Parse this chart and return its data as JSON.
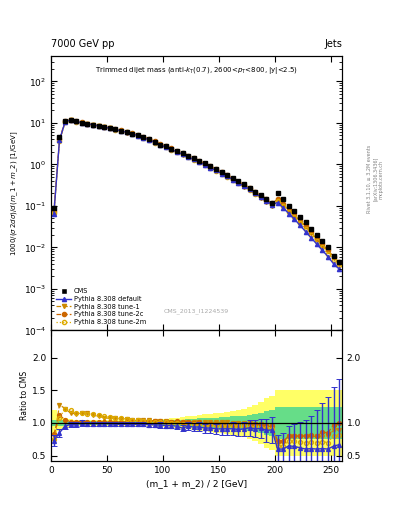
{
  "header_left": "7000 GeV pp",
  "header_right": "Jets",
  "watermark": "CMS_2013_I1224539",
  "rivet_text": "Rivet 3.1.10, ≥ 3.2M events",
  "arxiv_text": "[arXiv:1306.3436]",
  "mcplots_text": "mcplots.cern.ch",
  "xlabel": "(m_1 + m_2) / 2 [GeV]",
  "ylabel_main": "1000/(σ 2dσ)/d(m_1 + m_2) [1/GeV]",
  "ylabel_ratio": "Ratio to CMS",
  "xlim": [
    0,
    260
  ],
  "ylim_main": [
    0.0001,
    400
  ],
  "ylim_ratio": [
    0.42,
    2.42
  ],
  "cms_x": [
    2.5,
    7.5,
    12.5,
    17.5,
    22.5,
    27.5,
    32.5,
    37.5,
    42.5,
    47.5,
    52.5,
    57.5,
    62.5,
    67.5,
    72.5,
    77.5,
    82.5,
    87.5,
    92.5,
    97.5,
    102.5,
    107.5,
    112.5,
    117.5,
    122.5,
    127.5,
    132.5,
    137.5,
    142.5,
    147.5,
    152.5,
    157.5,
    162.5,
    167.5,
    172.5,
    177.5,
    182.5,
    187.5,
    192.5,
    197.5,
    202.5,
    207.5,
    212.5,
    217.5,
    222.5,
    227.5,
    232.5,
    237.5,
    242.5,
    247.5,
    252.5,
    257.5
  ],
  "cms_y": [
    0.09,
    4.5,
    11.0,
    12.0,
    11.0,
    10.0,
    9.5,
    9.0,
    8.5,
    8.0,
    7.5,
    7.0,
    6.5,
    6.0,
    5.5,
    5.0,
    4.5,
    4.0,
    3.5,
    3.0,
    2.7,
    2.4,
    2.1,
    1.9,
    1.6,
    1.4,
    1.2,
    1.05,
    0.9,
    0.78,
    0.66,
    0.56,
    0.47,
    0.4,
    0.33,
    0.27,
    0.22,
    0.18,
    0.15,
    0.12,
    0.2,
    0.15,
    0.1,
    0.075,
    0.055,
    0.04,
    0.028,
    0.02,
    0.014,
    0.01,
    0.0062,
    0.0045
  ],
  "cms_yerr": [
    0.01,
    0.3,
    0.5,
    0.5,
    0.4,
    0.4,
    0.3,
    0.3,
    0.3,
    0.3,
    0.3,
    0.3,
    0.2,
    0.2,
    0.2,
    0.2,
    0.2,
    0.15,
    0.15,
    0.12,
    0.1,
    0.1,
    0.09,
    0.08,
    0.07,
    0.06,
    0.05,
    0.045,
    0.04,
    0.035,
    0.03,
    0.025,
    0.022,
    0.018,
    0.015,
    0.012,
    0.01,
    0.009,
    0.008,
    0.007,
    0.015,
    0.012,
    0.008,
    0.006,
    0.005,
    0.004,
    0.003,
    0.002,
    0.0015,
    0.001,
    0.0006,
    0.0005
  ],
  "py_x": [
    2.5,
    7.5,
    12.5,
    17.5,
    22.5,
    27.5,
    32.5,
    37.5,
    42.5,
    47.5,
    52.5,
    57.5,
    62.5,
    67.5,
    72.5,
    77.5,
    82.5,
    87.5,
    92.5,
    97.5,
    102.5,
    107.5,
    112.5,
    117.5,
    122.5,
    127.5,
    132.5,
    137.5,
    142.5,
    147.5,
    152.5,
    157.5,
    162.5,
    167.5,
    172.5,
    177.5,
    182.5,
    187.5,
    192.5,
    197.5,
    202.5,
    207.5,
    212.5,
    217.5,
    222.5,
    227.5,
    232.5,
    237.5,
    242.5,
    247.5,
    252.5,
    257.5
  ],
  "py_default_y": [
    0.065,
    3.8,
    10.5,
    11.8,
    10.8,
    10.0,
    9.4,
    8.9,
    8.4,
    7.9,
    7.4,
    6.9,
    6.4,
    5.9,
    5.4,
    4.9,
    4.4,
    3.9,
    3.4,
    2.9,
    2.6,
    2.3,
    2.0,
    1.75,
    1.52,
    1.31,
    1.13,
    0.97,
    0.83,
    0.71,
    0.6,
    0.51,
    0.43,
    0.36,
    0.3,
    0.25,
    0.2,
    0.165,
    0.133,
    0.107,
    0.12,
    0.09,
    0.065,
    0.048,
    0.034,
    0.024,
    0.017,
    0.012,
    0.0085,
    0.006,
    0.004,
    0.003
  ],
  "py_tune1_y": [
    0.065,
    3.6,
    10.3,
    11.6,
    10.6,
    9.8,
    9.3,
    8.8,
    8.3,
    7.8,
    7.3,
    6.8,
    6.3,
    5.8,
    5.3,
    4.8,
    4.3,
    3.8,
    3.3,
    2.85,
    2.55,
    2.25,
    1.98,
    1.72,
    1.5,
    1.29,
    1.11,
    0.95,
    0.81,
    0.69,
    0.58,
    0.49,
    0.41,
    0.345,
    0.285,
    0.235,
    0.19,
    0.155,
    0.126,
    0.101,
    0.135,
    0.105,
    0.08,
    0.06,
    0.044,
    0.032,
    0.022,
    0.016,
    0.011,
    0.008,
    0.0055,
    0.004
  ],
  "py_tune2c_y": [
    0.075,
    4.0,
    10.8,
    12.0,
    11.0,
    10.2,
    9.6,
    9.1,
    8.6,
    8.1,
    7.6,
    7.1,
    6.6,
    6.1,
    5.6,
    5.1,
    4.6,
    4.1,
    3.6,
    3.1,
    2.75,
    2.45,
    2.15,
    1.88,
    1.63,
    1.41,
    1.21,
    1.04,
    0.89,
    0.76,
    0.64,
    0.54,
    0.455,
    0.385,
    0.32,
    0.265,
    0.215,
    0.175,
    0.142,
    0.114,
    0.145,
    0.108,
    0.08,
    0.06,
    0.044,
    0.032,
    0.023,
    0.016,
    0.012,
    0.0085,
    0.006,
    0.0045
  ],
  "py_tune2m_y": [
    0.068,
    3.7,
    10.4,
    11.7,
    10.7,
    9.9,
    9.35,
    8.85,
    8.35,
    7.85,
    7.35,
    6.85,
    6.35,
    5.85,
    5.35,
    4.85,
    4.35,
    3.85,
    3.35,
    2.87,
    2.57,
    2.27,
    1.99,
    1.73,
    1.51,
    1.3,
    1.12,
    0.96,
    0.82,
    0.7,
    0.59,
    0.5,
    0.42,
    0.355,
    0.295,
    0.243,
    0.197,
    0.161,
    0.13,
    0.104,
    0.13,
    0.098,
    0.072,
    0.054,
    0.039,
    0.028,
    0.02,
    0.014,
    0.01,
    0.007,
    0.005,
    0.0037
  ],
  "ratio_default_y": [
    0.73,
    0.85,
    0.95,
    0.98,
    0.98,
    1.0,
    0.99,
    0.99,
    0.99,
    0.99,
    0.99,
    0.98,
    0.98,
    0.98,
    0.98,
    0.98,
    0.98,
    0.975,
    0.97,
    0.97,
    0.96,
    0.96,
    0.95,
    0.92,
    0.95,
    0.935,
    0.94,
    0.92,
    0.922,
    0.91,
    0.908,
    0.91,
    0.91,
    0.9,
    0.91,
    0.926,
    0.91,
    0.917,
    0.887,
    0.893,
    0.6,
    0.6,
    0.65,
    0.64,
    0.62,
    0.6,
    0.607,
    0.6,
    0.607,
    0.6,
    0.645,
    0.667
  ],
  "ratio_tune1_y": [
    0.72,
    1.28,
    1.22,
    1.15,
    1.14,
    1.15,
    1.15,
    1.12,
    1.1,
    1.08,
    1.07,
    1.07,
    1.06,
    1.06,
    1.04,
    1.04,
    1.04,
    1.04,
    1.03,
    1.03,
    1.03,
    1.02,
    1.02,
    1.02,
    1.01,
    1.02,
    1.01,
    1.01,
    1.01,
    1.01,
    1.01,
    1.01,
    1.0,
    1.0,
    1.0,
    1.0,
    0.99,
    0.99,
    0.96,
    0.95,
    0.68,
    0.7,
    0.8,
    0.8,
    0.8,
    0.8,
    0.786,
    0.8,
    0.786,
    0.8,
    0.887,
    0.889
  ],
  "ratio_tune2c_y": [
    0.83,
    1.12,
    1.05,
    1.02,
    1.02,
    1.02,
    1.01,
    1.01,
    1.01,
    1.01,
    1.01,
    1.01,
    1.015,
    1.015,
    1.018,
    1.02,
    1.022,
    1.025,
    1.03,
    1.033,
    1.019,
    1.021,
    1.024,
    1.011,
    1.019,
    1.007,
    1.008,
    0.99,
    0.989,
    0.974,
    0.97,
    0.964,
    0.968,
    0.963,
    0.97,
    0.981,
    0.977,
    0.972,
    0.947,
    0.95,
    0.725,
    0.72,
    0.8,
    0.8,
    0.8,
    0.8,
    0.821,
    0.8,
    0.857,
    0.85,
    0.968,
    1.0
  ],
  "ratio_tune2m_y": [
    0.755,
    1.08,
    1.22,
    1.2,
    1.15,
    1.15,
    1.14,
    1.13,
    1.12,
    1.1,
    1.09,
    1.08,
    1.07,
    1.06,
    1.05,
    1.04,
    1.03,
    1.03,
    1.02,
    1.01,
    1.01,
    1.0,
    1.0,
    0.99,
    0.99,
    0.98,
    0.98,
    0.97,
    0.97,
    0.97,
    0.96,
    0.96,
    0.95,
    0.95,
    0.95,
    0.94,
    0.94,
    0.93,
    0.92,
    0.9,
    0.65,
    0.653,
    0.72,
    0.72,
    0.709,
    0.7,
    0.714,
    0.7,
    0.714,
    0.7,
    0.806,
    0.822
  ],
  "ratio_yerr_green": [
    0.05,
    0.04,
    0.04,
    0.03,
    0.03,
    0.03,
    0.03,
    0.03,
    0.03,
    0.03,
    0.03,
    0.03,
    0.03,
    0.03,
    0.03,
    0.03,
    0.03,
    0.03,
    0.03,
    0.04,
    0.04,
    0.04,
    0.05,
    0.05,
    0.06,
    0.06,
    0.07,
    0.07,
    0.08,
    0.08,
    0.09,
    0.09,
    0.1,
    0.1,
    0.11,
    0.12,
    0.13,
    0.15,
    0.18,
    0.2,
    0.25,
    0.25,
    0.25,
    0.25,
    0.25,
    0.25,
    0.25,
    0.25,
    0.25,
    0.25,
    0.25,
    0.25
  ],
  "ratio_yerr_yellow": [
    0.2,
    0.12,
    0.08,
    0.06,
    0.05,
    0.05,
    0.05,
    0.05,
    0.05,
    0.05,
    0.05,
    0.05,
    0.05,
    0.05,
    0.05,
    0.05,
    0.05,
    0.05,
    0.05,
    0.06,
    0.06,
    0.07,
    0.08,
    0.09,
    0.1,
    0.11,
    0.12,
    0.13,
    0.14,
    0.15,
    0.16,
    0.17,
    0.18,
    0.2,
    0.22,
    0.25,
    0.28,
    0.32,
    0.38,
    0.42,
    0.5,
    0.5,
    0.5,
    0.5,
    0.5,
    0.5,
    0.5,
    0.5,
    0.5,
    0.5,
    0.5,
    0.5
  ],
  "ratio_default_yerr_pts": [
    0.08,
    0.06,
    0.05,
    0.04,
    0.04,
    0.04,
    0.03,
    0.03,
    0.03,
    0.03,
    0.03,
    0.03,
    0.03,
    0.03,
    0.03,
    0.03,
    0.03,
    0.03,
    0.03,
    0.04,
    0.04,
    0.04,
    0.05,
    0.05,
    0.06,
    0.06,
    0.07,
    0.07,
    0.08,
    0.08,
    0.09,
    0.09,
    0.1,
    0.1,
    0.11,
    0.12,
    0.13,
    0.15,
    0.18,
    0.2,
    0.22,
    0.25,
    0.3,
    0.35,
    0.4,
    0.45,
    0.5,
    0.6,
    0.7,
    0.8,
    0.9,
    1.0
  ],
  "color_cms": "#000000",
  "color_default": "#3333cc",
  "color_tune1": "#cc8800",
  "color_tune2c": "#cc6600",
  "color_tune2m": "#ddaa00",
  "band_yellow": "#ffff66",
  "band_green": "#66dd88",
  "legend_labels": [
    "CMS",
    "Pythia 8.308 default",
    "Pythia 8.308 tune-1",
    "Pythia 8.308 tune-2c",
    "Pythia 8.308 tune-2m"
  ]
}
